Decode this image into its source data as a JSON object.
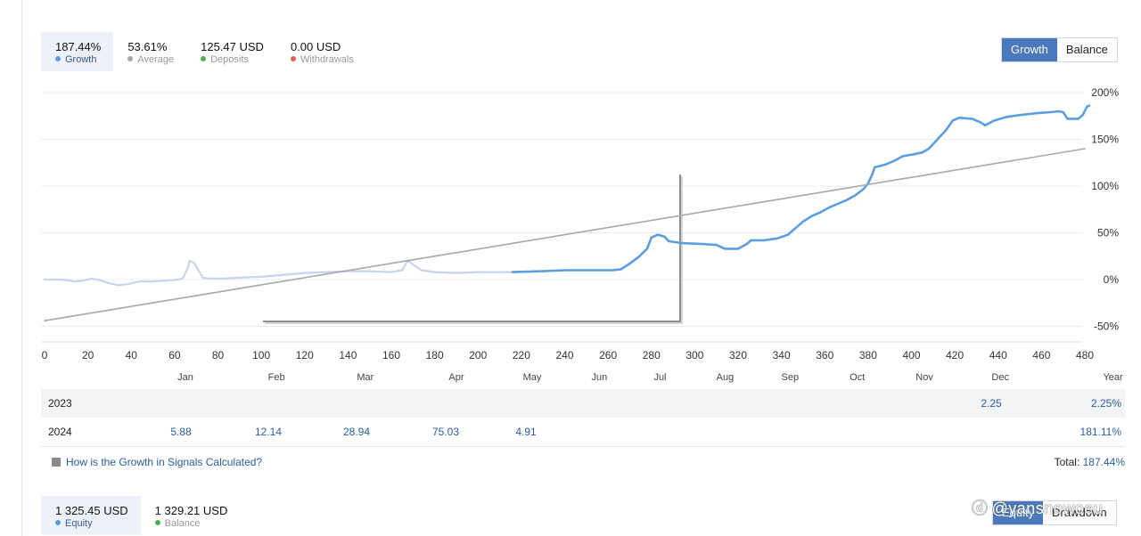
{
  "summary": [
    {
      "value": "187.44%",
      "label": "Growth",
      "color": "#5b9ee0",
      "active": true
    },
    {
      "value": "53.61%",
      "label": "Average",
      "color": "#a8a8a8",
      "active": false
    },
    {
      "value": "125.47 USD",
      "label": "Deposits",
      "color": "#4caf50",
      "active": false
    },
    {
      "value": "0.00 USD",
      "label": "Withdrawals",
      "color": "#e06050",
      "active": false
    }
  ],
  "toggle_top": {
    "left": "Growth",
    "right": "Balance",
    "selected": "Growth"
  },
  "chart_data": {
    "type": "line",
    "xlabel": "",
    "ylabel": "",
    "xlim": [
      0,
      480
    ],
    "ylim": [
      -55,
      205
    ],
    "x_ticks": [
      0,
      20,
      40,
      60,
      80,
      100,
      120,
      140,
      160,
      180,
      200,
      220,
      240,
      260,
      280,
      300,
      320,
      340,
      360,
      380,
      400,
      420,
      440,
      460,
      480
    ],
    "y_ticks": [
      200,
      150,
      100,
      50,
      0,
      -50
    ],
    "y_tick_labels": [
      "200%",
      "150%",
      "100%",
      "50%",
      "0%",
      "-50%"
    ],
    "month_labels": [
      {
        "label": "Jan",
        "x": 65
      },
      {
        "label": "Feb",
        "x": 107
      },
      {
        "label": "Mar",
        "x": 148
      },
      {
        "label": "Apr",
        "x": 190
      },
      {
        "label": "May",
        "x": 225
      },
      {
        "label": "Jun",
        "x": 256
      },
      {
        "label": "Jul",
        "x": 284
      },
      {
        "label": "Aug",
        "x": 314
      },
      {
        "label": "Sep",
        "x": 344
      },
      {
        "label": "Oct",
        "x": 375
      },
      {
        "label": "Nov",
        "x": 406
      },
      {
        "label": "Dec",
        "x": 441
      },
      {
        "label": "Year",
        "x": 493
      }
    ],
    "series": [
      {
        "style": "faded",
        "color": "#c9d3ee",
        "points": [
          [
            0,
            0
          ],
          [
            8,
            0
          ],
          [
            14,
            -2
          ],
          [
            18,
            -1
          ],
          [
            22,
            1
          ],
          [
            26,
            -1
          ],
          [
            30,
            -4
          ],
          [
            34,
            -6
          ],
          [
            38,
            -5
          ],
          [
            44,
            -2
          ],
          [
            50,
            -2
          ],
          [
            56,
            -1
          ],
          [
            62,
            0
          ],
          [
            64,
            2
          ],
          [
            66,
            12
          ],
          [
            67,
            20
          ],
          [
            69,
            18
          ],
          [
            71,
            10
          ],
          [
            73,
            2
          ],
          [
            76,
            1
          ],
          [
            82,
            1
          ],
          [
            90,
            2
          ],
          [
            100,
            3
          ],
          [
            110,
            5
          ],
          [
            120,
            7
          ],
          [
            130,
            8
          ],
          [
            140,
            9
          ],
          [
            150,
            9
          ],
          [
            160,
            8
          ],
          [
            165,
            10
          ],
          [
            167,
            18
          ],
          [
            168,
            20
          ],
          [
            170,
            16
          ],
          [
            174,
            10
          ],
          [
            180,
            8
          ],
          [
            190,
            7
          ],
          [
            200,
            8
          ],
          [
            210,
            8
          ],
          [
            216,
            8
          ]
        ]
      },
      {
        "style": "solid",
        "color": "#5b9ee0",
        "points": [
          [
            216,
            8
          ],
          [
            230,
            9
          ],
          [
            240,
            10
          ],
          [
            252,
            10
          ],
          [
            262,
            10
          ],
          [
            266,
            11
          ],
          [
            270,
            17
          ],
          [
            274,
            24
          ],
          [
            278,
            33
          ],
          [
            280,
            45
          ],
          [
            283,
            48
          ],
          [
            286,
            46
          ],
          [
            288,
            41
          ],
          [
            294,
            39
          ],
          [
            304,
            38
          ],
          [
            310,
            37
          ],
          [
            314,
            33
          ],
          [
            320,
            33
          ],
          [
            324,
            38
          ],
          [
            326,
            42
          ],
          [
            332,
            42
          ],
          [
            338,
            44
          ],
          [
            343,
            48
          ],
          [
            347,
            56
          ],
          [
            350,
            62
          ],
          [
            354,
            68
          ],
          [
            358,
            72
          ],
          [
            362,
            77
          ],
          [
            366,
            81
          ],
          [
            370,
            85
          ],
          [
            374,
            90
          ],
          [
            378,
            97
          ],
          [
            380,
            103
          ],
          [
            382,
            113
          ],
          [
            383,
            120
          ],
          [
            388,
            123
          ],
          [
            392,
            127
          ],
          [
            396,
            132
          ],
          [
            401,
            134
          ],
          [
            405,
            136
          ],
          [
            408,
            140
          ],
          [
            412,
            150
          ],
          [
            416,
            160
          ],
          [
            419,
            170
          ],
          [
            422,
            173
          ],
          [
            428,
            172
          ],
          [
            432,
            168
          ],
          [
            434,
            165
          ],
          [
            438,
            170
          ],
          [
            444,
            174
          ],
          [
            450,
            176
          ],
          [
            458,
            178
          ],
          [
            464,
            179
          ],
          [
            468,
            180
          ],
          [
            470,
            179
          ],
          [
            472,
            172
          ],
          [
            477,
            172
          ],
          [
            479,
            176
          ],
          [
            481,
            185
          ],
          [
            482,
            186
          ]
        ]
      },
      {
        "style": "trend",
        "color": "#a8a8a8",
        "points": [
          [
            0,
            -44
          ],
          [
            480,
            140
          ]
        ]
      }
    ]
  },
  "year_rows": [
    {
      "year": "2023",
      "values": [
        "",
        "",
        "",
        "",
        "",
        "",
        "",
        "",
        "",
        "",
        "",
        "2.25"
      ],
      "total": "2.25%"
    },
    {
      "year": "2024",
      "values": [
        "5.88",
        "12.14",
        "28.94",
        "75.03",
        "4.91",
        "",
        "",
        "",
        "",
        "",
        "",
        ""
      ],
      "total": "181.11%"
    }
  ],
  "help_text": "How is the Growth in Signals Calculated?",
  "total": {
    "label": "Total:",
    "value": "187.44%"
  },
  "bottom_summary": [
    {
      "value": "1 325.45 USD",
      "label": "Equity",
      "color": "#5b9ee0",
      "active": true
    },
    {
      "value": "1 329.21 USD",
      "label": "Balance",
      "color": "#4caf50",
      "active": false
    }
  ],
  "toggle_bottom": {
    "left": "Equity",
    "right": "Drawdown",
    "selected": "Equity"
  },
  "watermark": "@yansnowoeu"
}
